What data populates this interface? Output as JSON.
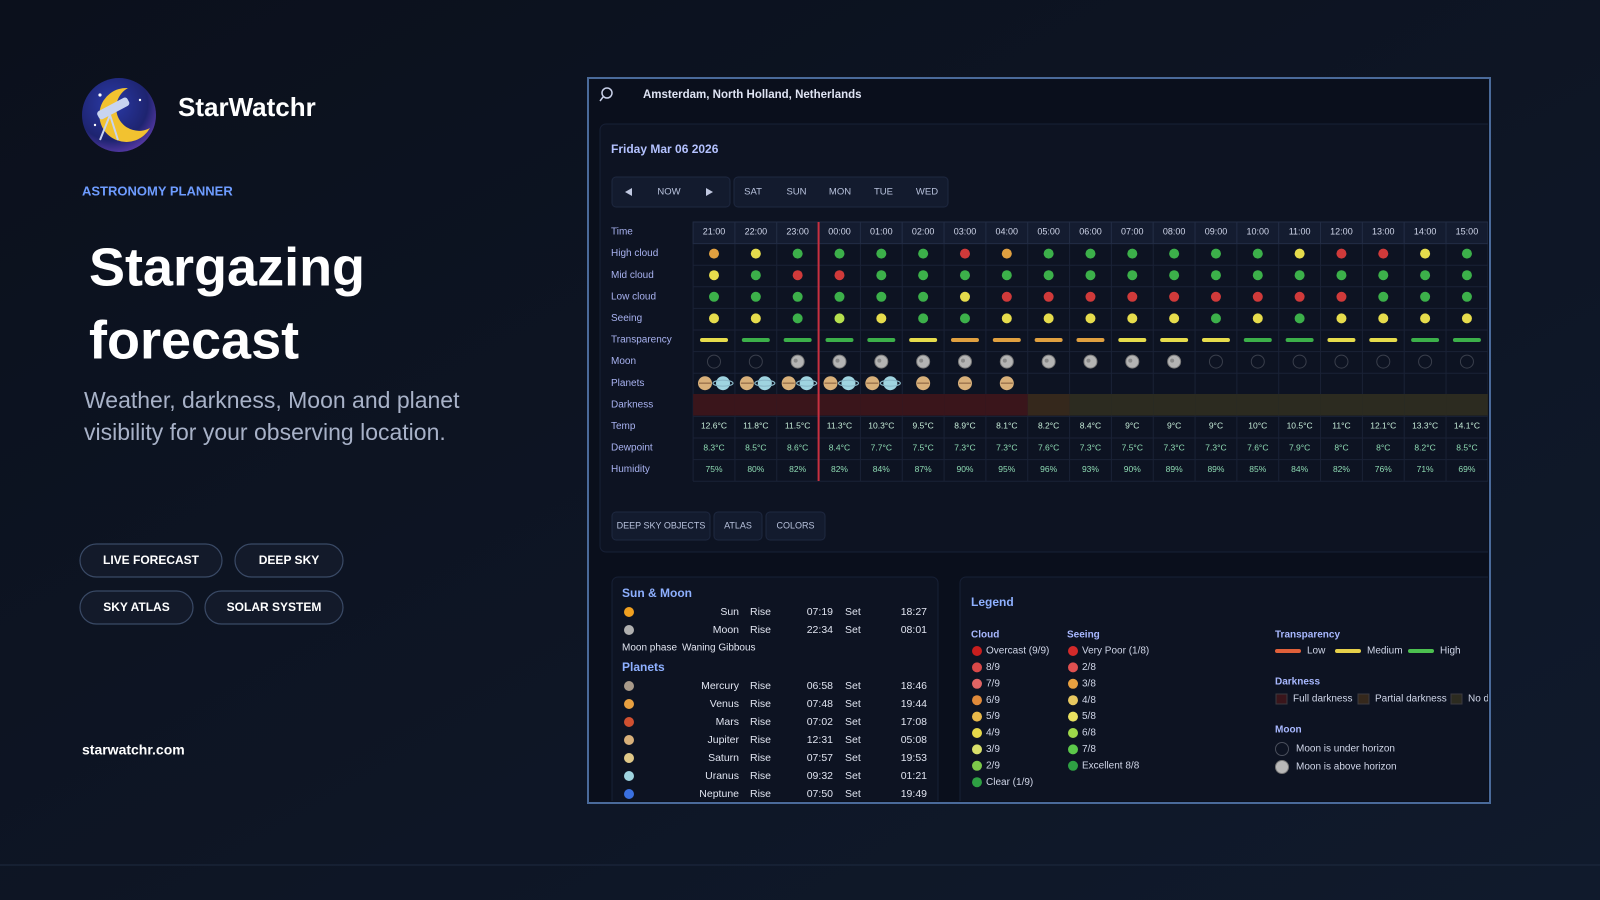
{
  "brand": {
    "name": "StarWatchr",
    "tagline": "ASTRONOMY PLANNER"
  },
  "hero": {
    "title": [
      "Stargazing",
      "forecast"
    ],
    "subtitle": [
      "Weather, darkness, Moon and planet",
      "visibility for your observing location."
    ]
  },
  "links": [
    "LIVE FORECAST",
    "DEEP SKY",
    "SKY ATLAS",
    "SOLAR SYSTEM"
  ],
  "site": "starwatchr.com",
  "app": {
    "location": "Amsterdam, North Holland, Netherlands",
    "date": "Friday Mar 06 2026",
    "nav": {
      "now": "NOW",
      "days": [
        "SAT",
        "SUN",
        "MON",
        "TUE",
        "WED"
      ]
    },
    "forecast": {
      "labels": {
        "time": "Time",
        "high_cloud": "High cloud",
        "mid_cloud": "Mid cloud",
        "low_cloud": "Low cloud",
        "seeing": "Seeing",
        "transparency": "Transparency",
        "moon": "Moon",
        "planets": "Planets",
        "darkness": "Darkness",
        "temp": "Temp",
        "dewpoint": "Dewpoint",
        "humidity": "Humidity"
      },
      "palette": {
        "r": "#d03a3a",
        "o": "#e0a040",
        "y": "#e6dc4c",
        "l": "#b6e04e",
        "g": "#3cb04a",
        "f": "#3a151b",
        "p": "#35281c",
        "n": "#2c2b20"
      },
      "time": [
        "21:00",
        "22:00",
        "23:00",
        "00:00",
        "01:00",
        "02:00",
        "03:00",
        "04:00",
        "05:00",
        "06:00",
        "07:00",
        "08:00",
        "09:00",
        "10:00",
        "11:00",
        "12:00",
        "13:00",
        "14:00",
        "15:00"
      ],
      "high_cloud": [
        "o",
        "y",
        "g",
        "g",
        "g",
        "g",
        "r",
        "o",
        "g",
        "g",
        "g",
        "g",
        "g",
        "g",
        "y",
        "r",
        "r",
        "y",
        "g"
      ],
      "mid_cloud": [
        "y",
        "g",
        "r",
        "r",
        "g",
        "g",
        "g",
        "g",
        "g",
        "g",
        "g",
        "g",
        "g",
        "g",
        "g",
        "g",
        "g",
        "g",
        "g"
      ],
      "low_cloud": [
        "g",
        "g",
        "g",
        "g",
        "g",
        "g",
        "y",
        "r",
        "r",
        "r",
        "r",
        "r",
        "r",
        "r",
        "r",
        "r",
        "g",
        "g",
        "g"
      ],
      "seeing": [
        "y",
        "y",
        "g",
        "l",
        "y",
        "g",
        "g",
        "y",
        "y",
        "y",
        "y",
        "y",
        "g",
        "y",
        "g",
        "y",
        "y",
        "y",
        "y"
      ],
      "transparency": [
        "y",
        "g",
        "g",
        "g",
        "g",
        "y",
        "o",
        "o",
        "o",
        "o",
        "y",
        "y",
        "y",
        "g",
        "g",
        "y",
        "y",
        "g",
        "g"
      ],
      "moon": [
        "u",
        "u",
        "a",
        "a",
        "a",
        "a",
        "a",
        "a",
        "a",
        "a",
        "a",
        "a",
        "u",
        "u",
        "u",
        "u",
        "u",
        "u",
        "u"
      ],
      "planets": [
        [
          "Jupiter",
          "Uranus"
        ],
        [
          "Jupiter",
          "Uranus"
        ],
        [
          "Jupiter",
          "Uranus"
        ],
        [
          "Jupiter",
          "Uranus"
        ],
        [
          "Jupiter",
          "Uranus"
        ],
        [
          "Jupiter"
        ],
        [
          "Jupiter"
        ],
        [
          "Jupiter"
        ],
        [],
        [],
        [],
        [],
        [],
        [],
        [],
        [],
        [],
        [],
        []
      ],
      "darkness": [
        "f",
        "f",
        "f",
        "f",
        "f",
        "f",
        "f",
        "f",
        "p",
        "n",
        "n",
        "n",
        "n",
        "n",
        "n",
        "n",
        "n",
        "n",
        "n"
      ],
      "temp": [
        "12.6°C",
        "11.8°C",
        "11.5°C",
        "11.3°C",
        "10.3°C",
        "9.5°C",
        "8.9°C",
        "8.1°C",
        "8.2°C",
        "8.4°C",
        "9°C",
        "9°C",
        "9°C",
        "10°C",
        "10.5°C",
        "11°C",
        "12.1°C",
        "13.3°C",
        "14.1°C"
      ],
      "dewpoint": [
        "8.3°C",
        "8.5°C",
        "8.6°C",
        "8.4°C",
        "7.7°C",
        "7.5°C",
        "7.3°C",
        "7.3°C",
        "7.6°C",
        "7.3°C",
        "7.5°C",
        "7.3°C",
        "7.3°C",
        "7.6°C",
        "7.9°C",
        "8°C",
        "8°C",
        "8.2°C",
        "8.5°C"
      ],
      "humidity": [
        "75%",
        "80%",
        "82%",
        "82%",
        "84%",
        "87%",
        "90%",
        "95%",
        "96%",
        "93%",
        "90%",
        "89%",
        "89%",
        "85%",
        "84%",
        "82%",
        "76%",
        "71%",
        "69%"
      ]
    },
    "tools": [
      "DEEP SKY OBJECTS",
      "ATLAS",
      "COLORS"
    ],
    "sun_moon": {
      "title": "Sun & Moon",
      "rise": "Rise",
      "set": "Set",
      "bodies": [
        {
          "name": "Sun",
          "rise": "07:19",
          "set": "18:27",
          "color": "#f0a020"
        },
        {
          "name": "Moon",
          "rise": "22:34",
          "set": "08:01",
          "color": "#b0b0b0"
        }
      ],
      "phase_label": "Moon phase",
      "phase": "Waning Gibbous",
      "planets_title": "Planets",
      "planets": [
        {
          "name": "Mercury",
          "rise": "06:58",
          "set": "18:46",
          "color": "#a89a8a"
        },
        {
          "name": "Venus",
          "rise": "07:48",
          "set": "19:44",
          "color": "#e8a040"
        },
        {
          "name": "Mars",
          "rise": "07:02",
          "set": "17:08",
          "color": "#d05030"
        },
        {
          "name": "Jupiter",
          "rise": "12:31",
          "set": "05:08",
          "color": "#d8b07a"
        },
        {
          "name": "Saturn",
          "rise": "07:57",
          "set": "19:53",
          "color": "#e0c888"
        },
        {
          "name": "Uranus",
          "rise": "09:32",
          "set": "01:21",
          "color": "#9fd4e0"
        },
        {
          "name": "Neptune",
          "rise": "07:50",
          "set": "19:49",
          "color": "#3a70e0"
        }
      ]
    },
    "legend": {
      "title": "Legend",
      "cloud": {
        "title": "Cloud",
        "items": [
          {
            "label": "Overcast (9/9)",
            "color": "#c81e1e"
          },
          {
            "label": "8/9",
            "color": "#d94848"
          },
          {
            "label": "7/9",
            "color": "#e06464"
          },
          {
            "label": "6/9",
            "color": "#e08a3a"
          },
          {
            "label": "5/9",
            "color": "#e8b84a"
          },
          {
            "label": "4/9",
            "color": "#e6d84a"
          },
          {
            "label": "3/9",
            "color": "#d8e06a"
          },
          {
            "label": "2/9",
            "color": "#7cc94a"
          },
          {
            "label": "Clear (1/9)",
            "color": "#2ea043"
          }
        ]
      },
      "seeing": {
        "title": "Seeing",
        "items": [
          {
            "label": "Very Poor (1/8)",
            "color": "#d42a2a"
          },
          {
            "label": "2/8",
            "color": "#e05050"
          },
          {
            "label": "3/8",
            "color": "#e8a040"
          },
          {
            "label": "4/8",
            "color": "#e8c860"
          },
          {
            "label": "5/8",
            "color": "#e8e060"
          },
          {
            "label": "6/8",
            "color": "#9fd84a"
          },
          {
            "label": "7/8",
            "color": "#5cc84a"
          },
          {
            "label": "Excellent 8/8",
            "color": "#2ea043"
          }
        ]
      },
      "transparency": {
        "title": "Transparency",
        "items": [
          {
            "label": "Low",
            "color": "#e0603a"
          },
          {
            "label": "Medium",
            "color": "#e6d04a"
          },
          {
            "label": "High",
            "color": "#4cc050"
          }
        ]
      },
      "darkness": {
        "title": "Darkness",
        "items": [
          {
            "label": "Full darkness",
            "color": "#3a151b"
          },
          {
            "label": "Partial darkness",
            "color": "#35281c"
          },
          {
            "label": "No darkness",
            "color": "#2c2b20"
          }
        ]
      },
      "moon": {
        "title": "Moon",
        "items": [
          {
            "label": "Moon is under horizon",
            "color": "none"
          },
          {
            "label": "Moon is above horizon",
            "color": "#b8b8b8"
          }
        ]
      }
    }
  }
}
